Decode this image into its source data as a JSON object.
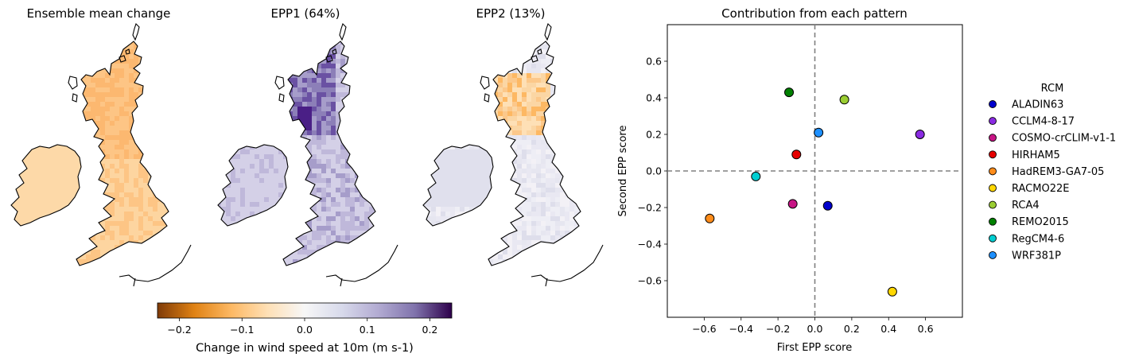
{
  "maps": [
    {
      "title": "Ensemble mean change",
      "palette": "orange"
    },
    {
      "title": "EPP1 (64%)",
      "palette": "purple"
    },
    {
      "title": "EPP2 (13%)",
      "palette": "mixed"
    }
  ],
  "colorbar": {
    "label": "Change in wind speed at 10m (m s-1)",
    "range": [
      -0.235,
      0.235
    ],
    "ticks": [
      -0.2,
      -0.1,
      0.0,
      0.1,
      0.2
    ],
    "tick_labels": [
      "−0.2",
      "−0.1",
      "0.0",
      "0.1",
      "0.2"
    ],
    "colors": [
      "#7f3b08",
      "#e08214",
      "#fdb863",
      "#fee0b6",
      "#f7f7f7",
      "#d8daeb",
      "#b2abd2",
      "#8073ac",
      "#2d004b"
    ]
  },
  "chart_data": {
    "type": "scatter",
    "title": "Contribution from each pattern",
    "xlabel": "First EPP score",
    "ylabel": "Second EPP score",
    "xlim": [
      -0.8,
      0.8
    ],
    "ylim": [
      -0.8,
      0.8
    ],
    "xticks": [
      -0.6,
      -0.4,
      -0.2,
      0.0,
      0.2,
      0.4,
      0.6
    ],
    "yticks": [
      -0.6,
      -0.4,
      -0.2,
      0.0,
      0.2,
      0.4,
      0.6
    ],
    "xtick_labels": [
      "−0.6",
      "−0.4",
      "−0.2",
      "0.0",
      "0.2",
      "0.4",
      "0.6"
    ],
    "ytick_labels": [
      "−0.6",
      "−0.4",
      "−0.2",
      "0.0",
      "0.2",
      "0.4",
      "0.6"
    ],
    "grid": false,
    "reference_lines": {
      "x": 0,
      "y": 0,
      "style": "dashed",
      "color": "#808080"
    },
    "legend": {
      "title": "RCM",
      "placement": "outside-right"
    },
    "series": [
      {
        "name": "ALADIN63",
        "color": "#0000cd",
        "x": 0.07,
        "y": -0.19
      },
      {
        "name": "CCLM4-8-17",
        "color": "#8a2be2",
        "x": 0.57,
        "y": 0.2
      },
      {
        "name": "COSMO-crCLIM-v1-1",
        "color": "#c71585",
        "x": -0.12,
        "y": -0.18
      },
      {
        "name": "HIRHAM5",
        "color": "#e60000",
        "x": -0.1,
        "y": 0.09
      },
      {
        "name": "HadREM3-GA7-05",
        "color": "#ff8c1a",
        "x": -0.57,
        "y": -0.26
      },
      {
        "name": "RACMO22E",
        "color": "#ffd700",
        "x": 0.42,
        "y": -0.66
      },
      {
        "name": "RCA4",
        "color": "#9acd32",
        "x": 0.16,
        "y": 0.39
      },
      {
        "name": "REMO2015",
        "color": "#008000",
        "x": -0.14,
        "y": 0.43
      },
      {
        "name": "RegCM4-6",
        "color": "#00ced1",
        "x": -0.32,
        "y": -0.03
      },
      {
        "name": "WRF381P",
        "color": "#1e90ff",
        "x": 0.02,
        "y": 0.21
      }
    ]
  }
}
